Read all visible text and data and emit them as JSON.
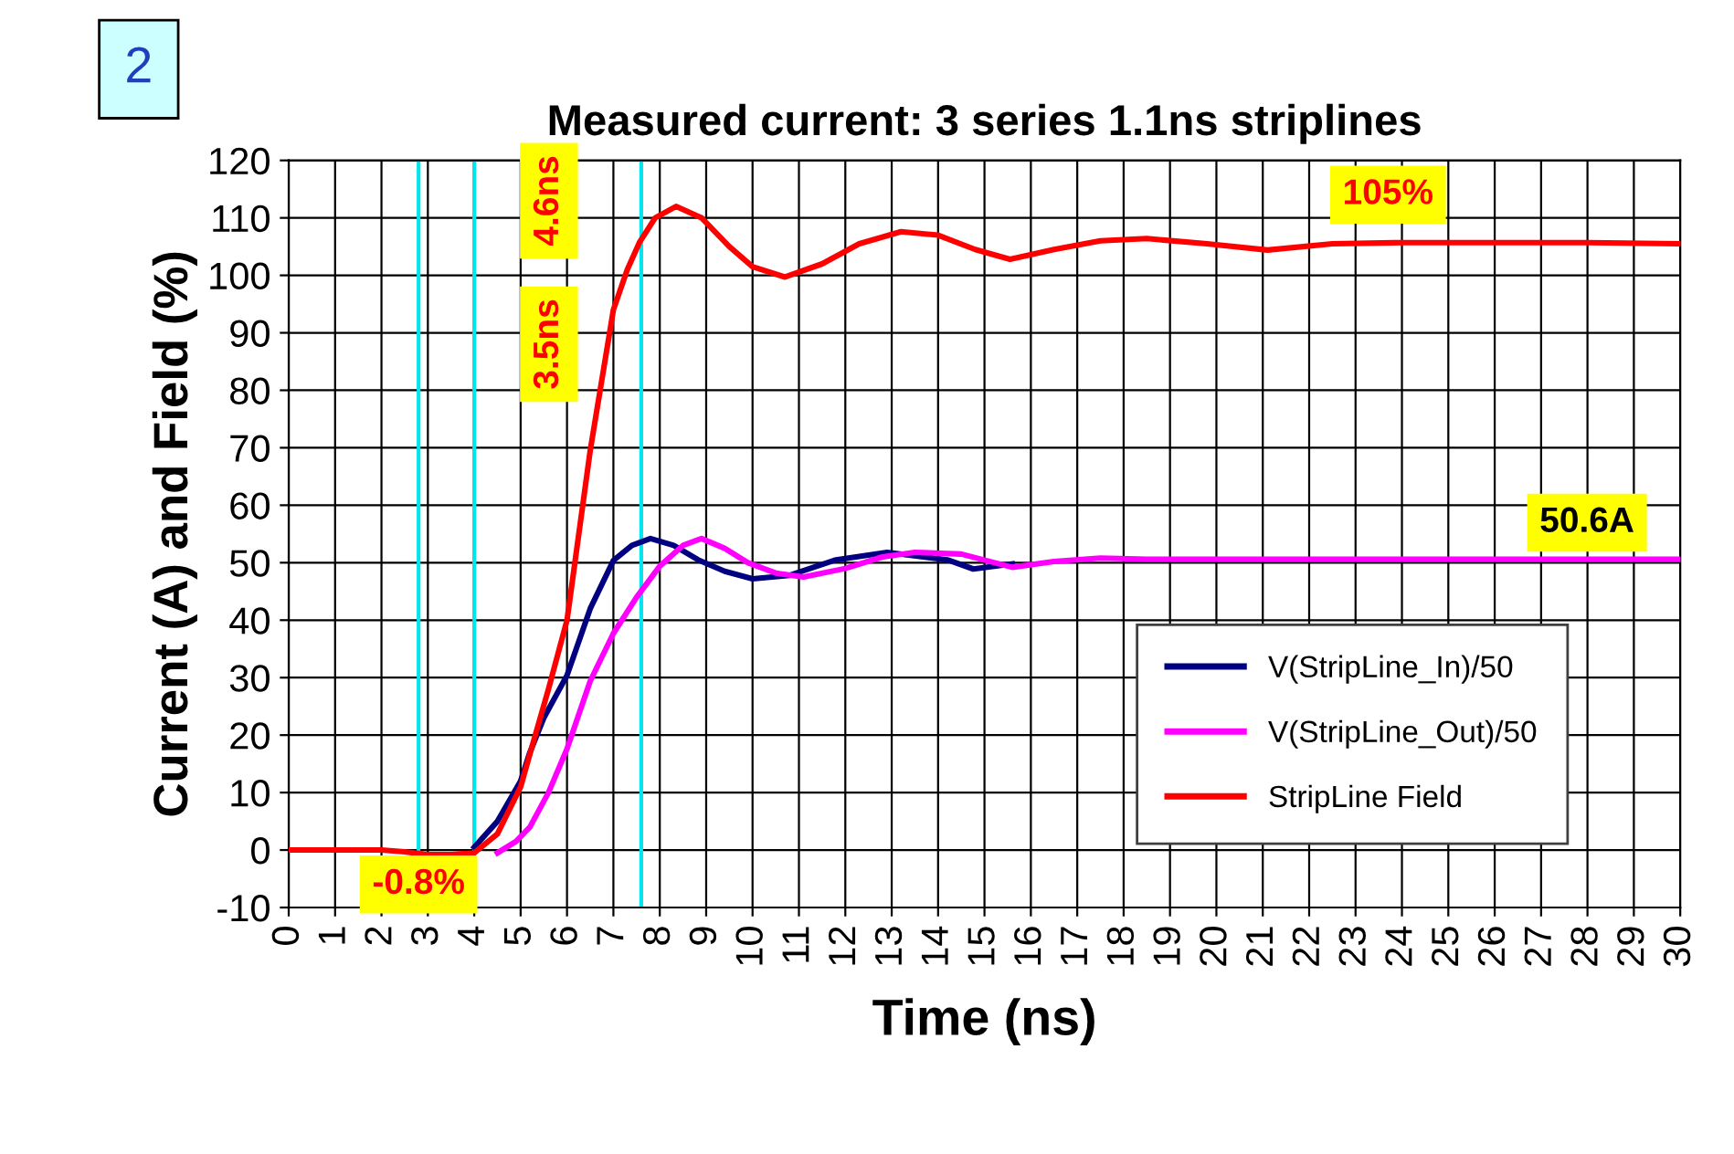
{
  "chart_data": {
    "type": "line",
    "title": "Measured current: 3 series 1.1ns striplines",
    "xlabel": "Time (ns)",
    "ylabel": "Current (A) and Field (%)",
    "xlim": [
      0,
      30
    ],
    "xticks": [
      0,
      1,
      2,
      3,
      4,
      5,
      6,
      7,
      8,
      9,
      10,
      11,
      12,
      13,
      14,
      15,
      16,
      17,
      18,
      19,
      20,
      21,
      22,
      23,
      24,
      25,
      26,
      27,
      28,
      29,
      30
    ],
    "ylim": [
      -10,
      120
    ],
    "yticks": [
      -10,
      0,
      10,
      20,
      30,
      40,
      50,
      60,
      70,
      80,
      90,
      100,
      110,
      120
    ],
    "grid": true,
    "legend": "bottom right",
    "line_style": "solid",
    "marker": "none",
    "series": [
      {
        "name": "V(StripLine_In)/50",
        "color": "#000080",
        "x": [
          4,
          4.5,
          5,
          5.2,
          5.5,
          6,
          6.5,
          7,
          7.4,
          7.8,
          8.3,
          8.85,
          9.4,
          10,
          10.8,
          11.8,
          12.9,
          14.2,
          14.76,
          15.6
        ],
        "values": [
          0.5,
          5,
          12,
          17,
          23,
          30.4,
          42,
          50.4,
          53,
          54.2,
          53,
          50.4,
          48.5,
          47.2,
          47.8,
          50.5,
          51.8,
          50.5,
          48.9,
          49.8
        ]
      },
      {
        "name": "V(StripLine_Out)/50",
        "color": "#ff00ff",
        "x": [
          4.5,
          4.9,
          5.2,
          5.6,
          6,
          6.5,
          7,
          7.5,
          8,
          8.5,
          8.9,
          9.4,
          9.9,
          10.5,
          11.1,
          12,
          12.8,
          13.5,
          14.5,
          15.6,
          16.5,
          17.5,
          18.5,
          20,
          22,
          24,
          26,
          28,
          30
        ],
        "values": [
          -0.5,
          1.5,
          4,
          10,
          17.6,
          29.4,
          37.7,
          44,
          49.4,
          53,
          54.2,
          52.5,
          50,
          48.2,
          47.5,
          49,
          51,
          51.8,
          51.5,
          49.2,
          50.2,
          50.8,
          50.6,
          50.6,
          50.6,
          50.6,
          50.6,
          50.6,
          50.6
        ]
      },
      {
        "name": "StripLine Field",
        "color": "#ff0000",
        "x": [
          0,
          1,
          2,
          2.5,
          3,
          3.5,
          4,
          4.5,
          5,
          5.2,
          5.6,
          6,
          6.5,
          7,
          7.3,
          7.56,
          7.9,
          8.35,
          8.9,
          9.5,
          10,
          10.7,
          11.5,
          12.3,
          13.2,
          14,
          14.8,
          15.55,
          16.5,
          17.5,
          18.5,
          19.8,
          21.1,
          22.5,
          24,
          26,
          28,
          30
        ],
        "values": [
          0,
          0,
          0,
          -0.3,
          -0.8,
          -0.8,
          -0.5,
          2.8,
          11,
          16.7,
          28,
          40,
          69.5,
          94,
          101,
          105.7,
          110,
          112,
          110,
          105,
          101.5,
          99.7,
          102,
          105.5,
          107.6,
          107,
          104.5,
          102.8,
          104.5,
          106,
          106.4,
          105.5,
          104.4,
          105.5,
          105.7,
          105.7,
          105.7,
          105.5
        ]
      }
    ],
    "ref_lines": [
      {
        "axis": "x",
        "value": 4,
        "color": "#00e5ee"
      },
      {
        "axis": "x",
        "value": 2.8,
        "color": "#00e5ee"
      },
      {
        "axis": "x",
        "value": 7.6,
        "color": "#00e5ee"
      }
    ],
    "annotations": [
      "2",
      "105%",
      "50.6A",
      {
        "text": "-0.8%",
        "x": 2.8,
        "y": -6
      },
      "4.6ns",
      "3.5ns"
    ]
  }
}
